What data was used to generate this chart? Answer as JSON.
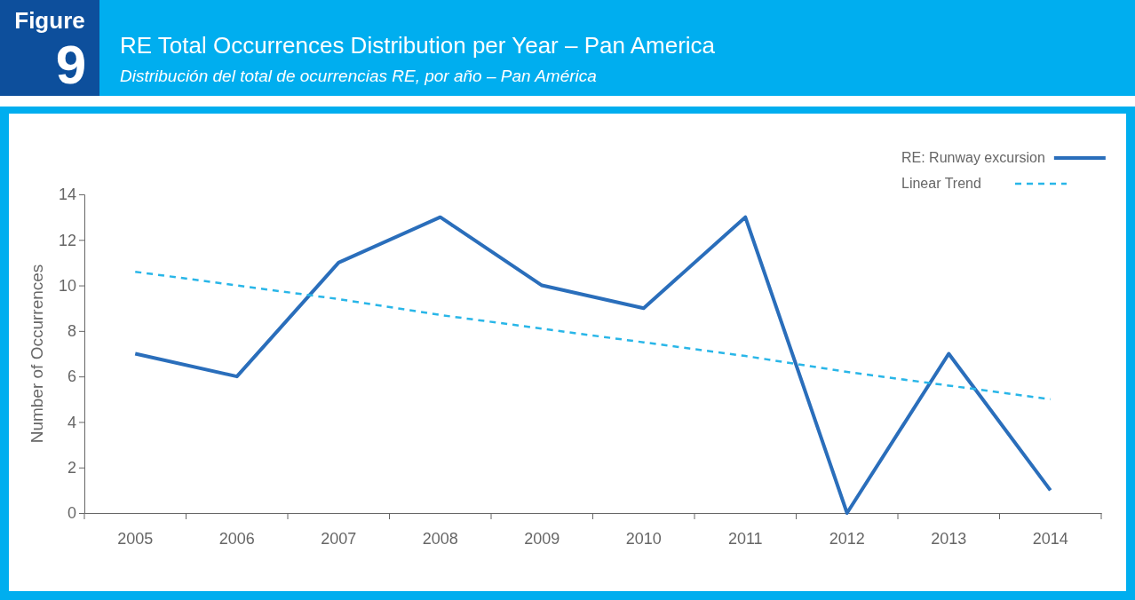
{
  "chart_data": {
    "type": "line",
    "title": "RE Total Occurrences Distribution per Year – Pan America",
    "subtitle": "Distribución del total de ocurrencias RE, por año – Pan América",
    "annotations": [
      "Figure",
      "9"
    ],
    "ylabel": "Number of Occurrences",
    "categories": [
      "2005",
      "2006",
      "2007",
      "2008",
      "2009",
      "2010",
      "2011",
      "2012",
      "2013",
      "2014"
    ],
    "series": [
      {
        "name": "RE: Runway excursion",
        "color": "#2a6ebb",
        "line_style": "solid",
        "values": [
          7,
          6,
          11,
          13,
          10,
          9,
          13,
          0,
          7,
          1
        ]
      },
      {
        "name": "Linear Trend",
        "color": "#29b6e8",
        "line_style": "dashed",
        "values": [
          10.6,
          10.0,
          9.4,
          8.7,
          8.1,
          7.5,
          6.9,
          6.2,
          5.6,
          5.0
        ]
      }
    ],
    "ylim": [
      0,
      14
    ],
    "yticks": [
      0,
      2,
      4,
      6,
      8,
      10,
      12,
      14
    ],
    "grid": false,
    "legend": "top right",
    "marker": "none"
  }
}
